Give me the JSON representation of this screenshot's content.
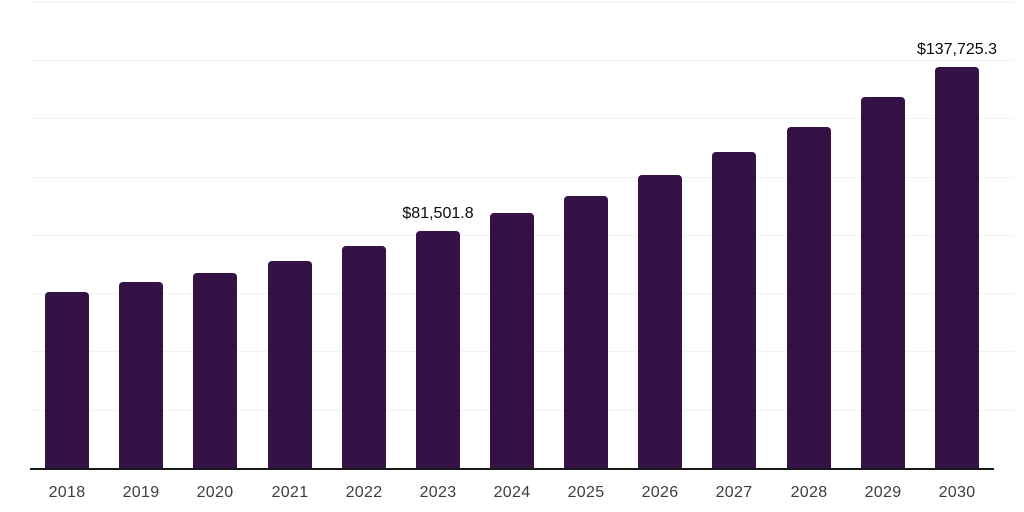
{
  "chart_data": {
    "type": "bar",
    "title": "",
    "xlabel": "",
    "ylabel": "",
    "categories": [
      "2018",
      "2019",
      "2020",
      "2021",
      "2022",
      "2023",
      "2024",
      "2025",
      "2026",
      "2027",
      "2028",
      "2029",
      "2030"
    ],
    "values": [
      60400,
      63900,
      67000,
      71100,
      76300,
      81501.8,
      87500,
      93400,
      100700,
      108400,
      117100,
      127300,
      137725.3
    ],
    "value_labels": [
      {
        "category": "2023",
        "label": "$81,501.8"
      },
      {
        "category": "2030",
        "label": "$137,725.3"
      }
    ],
    "ylim": [
      0,
      160000
    ],
    "gridline_step": 20000,
    "grid": "horizontal-only, very faint, no y tick labels",
    "legend": "none",
    "bar_corner": "rounded-top",
    "colors": {
      "bar": "#341246",
      "axis_line": "#1a1a1a",
      "tick_label": "#3d3d3d",
      "data_label": "#0a0a0a",
      "gridline": "#f2f2f2",
      "background": "#ffffff"
    }
  }
}
